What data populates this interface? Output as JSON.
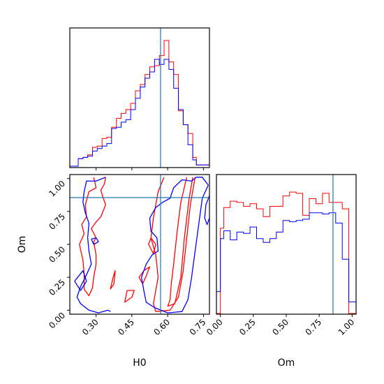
{
  "chart_data": [
    {
      "panel": "H0 marginal",
      "type": "histogram",
      "x_range": [
        0.19,
        0.775
      ],
      "truth": 0.5702,
      "series": [
        {
          "color": "#ff0000",
          "bin_edges": [
            0.19,
            0.225,
            0.245,
            0.265,
            0.285,
            0.305,
            0.325,
            0.345,
            0.365,
            0.385,
            0.405,
            0.425,
            0.445,
            0.465,
            0.485,
            0.505,
            0.525,
            0.545,
            0.565,
            0.585,
            0.605,
            0.625,
            0.645,
            0.665,
            0.685,
            0.705,
            0.72,
            0.775
          ],
          "heights": [
            0.0,
            0.06,
            0.07,
            0.09,
            0.15,
            0.16,
            0.22,
            0.23,
            0.31,
            0.38,
            0.42,
            0.45,
            0.5,
            0.6,
            0.65,
            0.73,
            0.79,
            0.8,
            0.88,
            1.0,
            0.83,
            0.73,
            0.44,
            0.33,
            0.26,
            0.07,
            0.01
          ]
        },
        {
          "color": "#0000ff",
          "bin_edges": [
            0.19,
            0.225,
            0.245,
            0.265,
            0.285,
            0.305,
            0.325,
            0.345,
            0.365,
            0.385,
            0.405,
            0.425,
            0.445,
            0.465,
            0.485,
            0.505,
            0.525,
            0.545,
            0.565,
            0.585,
            0.605,
            0.625,
            0.645,
            0.665,
            0.685,
            0.705,
            0.72,
            0.775
          ],
          "heights": [
            0.0,
            0.06,
            0.07,
            0.08,
            0.12,
            0.14,
            0.16,
            0.18,
            0.3,
            0.31,
            0.35,
            0.37,
            0.45,
            0.54,
            0.63,
            0.7,
            0.75,
            0.85,
            0.81,
            0.85,
            0.77,
            0.62,
            0.45,
            0.33,
            0.17,
            0.05,
            0.01
          ]
        }
      ]
    },
    {
      "panel": "Om vs H0 2D",
      "type": "contour",
      "xlabel": "H0",
      "ylabel": "Om",
      "xlim": [
        0.19,
        0.775
      ],
      "ylim": [
        -0.03,
        1.03
      ],
      "x_ticks": [
        "0.30",
        "0.45",
        "0.60",
        "0.75"
      ],
      "y_ticks": [
        "0.00",
        "0.25",
        "0.50",
        "0.75",
        "1.00"
      ],
      "truth": {
        "x": 0.5702,
        "y": 0.855
      },
      "series": [
        {
          "color": "#ff0000",
          "contours": [
            [
              [
                0.68,
                1.01
              ],
              [
                0.655,
                0.82
              ],
              [
                0.64,
                0.6
              ],
              [
                0.625,
                0.35
              ],
              [
                0.615,
                0.2
              ],
              [
                0.61,
                0.08
              ],
              [
                0.6,
                0.03
              ],
              [
                0.63,
                0.05
              ],
              [
                0.655,
                0.25
              ],
              [
                0.67,
                0.55
              ],
              [
                0.69,
                0.85
              ],
              [
                0.705,
                1.01
              ]
            ],
            [
              [
                0.715,
                1.01
              ],
              [
                0.695,
                0.8
              ],
              [
                0.68,
                0.55
              ],
              [
                0.665,
                0.3
              ],
              [
                0.645,
                0.1
              ],
              [
                0.61,
                0.0
              ],
              [
                0.55,
                -0.01
              ],
              [
                0.54,
                0.05
              ],
              [
                0.56,
                0.25
              ],
              [
                0.55,
                0.42
              ],
              [
                0.53,
                0.55
              ],
              [
                0.54,
                0.7
              ],
              [
                0.55,
                0.8
              ],
              [
                0.56,
                0.9
              ],
              [
                0.585,
                1.01
              ]
            ],
            [
              [
                0.54,
                0.43
              ],
              [
                0.52,
                0.5
              ],
              [
                0.53,
                0.55
              ],
              [
                0.55,
                0.5
              ],
              [
                0.54,
                0.43
              ]
            ],
            [
              [
                0.525,
                0.33
              ],
              [
                0.51,
                0.26
              ],
              [
                0.495,
                0.2
              ],
              [
                0.48,
                0.25
              ],
              [
                0.5,
                0.3
              ],
              [
                0.525,
                0.33
              ]
            ],
            [
              [
                0.29,
                1.01
              ],
              [
                0.3,
                0.93
              ],
              [
                0.27,
                0.9
              ],
              [
                0.255,
                0.8
              ],
              [
                0.26,
                0.71
              ],
              [
                0.24,
                0.65
              ],
              [
                0.25,
                0.58
              ],
              [
                0.23,
                0.5
              ],
              [
                0.245,
                0.38
              ],
              [
                0.25,
                0.28
              ],
              [
                0.25,
                0.16
              ],
              [
                0.27,
                0.11
              ],
              [
                0.285,
                0.17
              ],
              [
                0.29,
                0.25
              ],
              [
                0.3,
                0.35
              ],
              [
                0.3,
                0.42
              ],
              [
                0.29,
                0.52
              ],
              [
                0.3,
                0.55
              ],
              [
                0.28,
                0.62
              ],
              [
                0.3,
                0.67
              ],
              [
                0.32,
                0.71
              ],
              [
                0.34,
                0.8
              ],
              [
                0.33,
                0.85
              ],
              [
                0.32,
                0.91
              ],
              [
                0.335,
                0.96
              ],
              [
                0.34,
                1.01
              ]
            ],
            [
              [
                0.36,
                0.16
              ],
              [
                0.37,
                0.24
              ],
              [
                0.38,
                0.3
              ],
              [
                0.375,
                0.2
              ],
              [
                0.36,
                0.16
              ]
            ],
            [
              [
                0.42,
                0.06
              ],
              [
                0.45,
                0.1
              ],
              [
                0.46,
                0.15
              ],
              [
                0.43,
                0.15
              ],
              [
                0.42,
                0.06
              ]
            ]
          ]
        },
        {
          "color": "#0000ff",
          "contours": [
            [
              [
                0.77,
                0.95
              ],
              [
                0.745,
                0.85
              ],
              [
                0.73,
                0.65
              ],
              [
                0.715,
                0.45
              ],
              [
                0.7,
                0.25
              ],
              [
                0.685,
                0.08
              ],
              [
                0.66,
                -0.01
              ],
              [
                0.6,
                -0.02
              ],
              [
                0.545,
                0.02
              ],
              [
                0.51,
                0.06
              ],
              [
                0.5,
                0.15
              ],
              [
                0.49,
                0.25
              ],
              [
                0.51,
                0.35
              ],
              [
                0.535,
                0.42
              ],
              [
                0.56,
                0.45
              ],
              [
                0.555,
                0.55
              ],
              [
                0.53,
                0.6
              ],
              [
                0.525,
                0.7
              ],
              [
                0.55,
                0.78
              ],
              [
                0.58,
                0.82
              ],
              [
                0.61,
                0.85
              ],
              [
                0.625,
                0.93
              ],
              [
                0.66,
                0.99
              ],
              [
                0.7,
                0.98
              ],
              [
                0.72,
                1.01
              ],
              [
                0.745,
                1.01
              ],
              [
                0.77,
                0.95
              ]
            ],
            [
              [
                0.775,
                0.87
              ],
              [
                0.76,
                0.8
              ],
              [
                0.755,
                0.7
              ],
              [
                0.765,
                0.65
              ],
              [
                0.775,
                0.7
              ]
            ],
            [
              [
                0.34,
                1.01
              ],
              [
                0.3,
                0.98
              ],
              [
                0.26,
                0.98
              ],
              [
                0.25,
                0.9
              ],
              [
                0.245,
                0.82
              ],
              [
                0.255,
                0.74
              ],
              [
                0.27,
                0.66
              ],
              [
                0.265,
                0.55
              ],
              [
                0.27,
                0.45
              ],
              [
                0.28,
                0.35
              ],
              [
                0.255,
                0.25
              ],
              [
                0.235,
                0.18
              ],
              [
                0.22,
                0.1
              ],
              [
                0.235,
                0.05
              ],
              [
                0.27,
                0.0
              ],
              [
                0.31,
                -0.02
              ],
              [
                0.35,
                0.0
              ],
              [
                0.36,
                -0.01
              ]
            ],
            [
              [
                0.21,
                0.22
              ],
              [
                0.245,
                0.3
              ],
              [
                0.26,
                0.22
              ],
              [
                0.235,
                0.15
              ],
              [
                0.21,
                0.22
              ]
            ],
            [
              [
                0.28,
                0.54
              ],
              [
                0.29,
                0.5
              ],
              [
                0.31,
                0.52
              ],
              [
                0.3,
                0.55
              ],
              [
                0.28,
                0.54
              ]
            ]
          ]
        }
      ]
    },
    {
      "panel": "Om marginal",
      "type": "histogram",
      "xlabel": "Om",
      "x_range": [
        -0.03,
        1.03
      ],
      "x_ticks": [
        "0.00",
        "0.25",
        "0.50",
        "0.75",
        "1.00"
      ],
      "truth": 0.855,
      "series": [
        {
          "color": "#ff0000",
          "bin_edges": [
            -0.03,
            0.0,
            0.025,
            0.075,
            0.125,
            0.175,
            0.225,
            0.275,
            0.325,
            0.375,
            0.425,
            0.475,
            0.525,
            0.575,
            0.625,
            0.675,
            0.725,
            0.775,
            0.825,
            0.875,
            0.925,
            0.975,
            1.03
          ],
          "heights": [
            0.0,
            0.66,
            0.82,
            0.87,
            0.86,
            0.83,
            0.85,
            0.81,
            0.75,
            0.83,
            0.83,
            0.91,
            0.94,
            0.93,
            0.76,
            0.89,
            0.85,
            0.93,
            0.86,
            0.86,
            0.81,
            0.0
          ]
        },
        {
          "color": "#0000ff",
          "bin_edges": [
            -0.03,
            0.0,
            0.025,
            0.075,
            0.125,
            0.175,
            0.225,
            0.275,
            0.325,
            0.375,
            0.425,
            0.475,
            0.525,
            0.575,
            0.625,
            0.675,
            0.725,
            0.775,
            0.825,
            0.875,
            0.925,
            0.975,
            1.03
          ],
          "heights": [
            0.17,
            0.58,
            0.64,
            0.57,
            0.63,
            0.62,
            0.67,
            0.58,
            0.55,
            0.58,
            0.63,
            0.72,
            0.71,
            0.72,
            0.73,
            0.78,
            0.78,
            0.77,
            0.78,
            0.7,
            0.42,
            0.09
          ]
        }
      ]
    }
  ]
}
